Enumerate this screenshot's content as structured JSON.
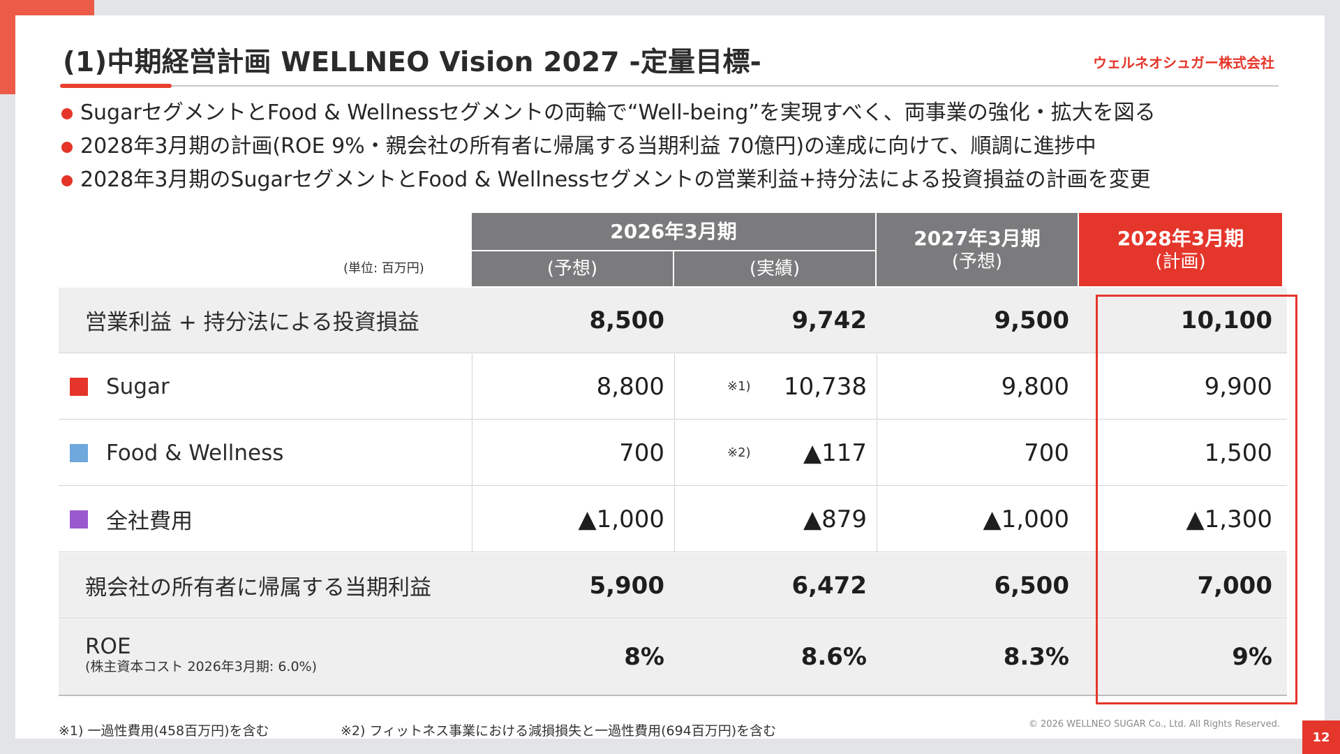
{
  "header": {
    "title": "(1)中期経営計画 WELLNEO Vision 2027 -定量目標-",
    "logo_text": "ウェルネオシュガー株式会社"
  },
  "bullets": [
    "SugarセグメントとFood & Wellnessセグメントの両輪で“Well-being”を実現すべく、両事業の強化・拡大を図る",
    "2028年3月期の計画(ROE 9%・親会社の所有者に帰属する当期利益 70億円)の達成に向けて、順調に進捗中",
    "2028年3月期のSugarセグメントとFood & Wellnessセグメントの営業利益+持分法による投資損益の計画を変更"
  ],
  "table": {
    "unit": "(単位: 百万円)",
    "headers": {
      "fy2026": "2026年3月期",
      "fy2026_forecast": "(予想)",
      "fy2026_actual": "(実績)",
      "fy2027": "2027年3月期",
      "fy2027_sub": "(予想)",
      "fy2028": "2028年3月期",
      "fy2028_sub": "(計画)"
    },
    "rows": [
      {
        "label": "営業利益 + 持分法による投資損益",
        "forecast": "8,500",
        "actual": "9,742",
        "fy2027": "9,500",
        "fy2028": "10,100",
        "note": ""
      },
      {
        "label": "Sugar",
        "forecast": "8,800",
        "actual": "10,738",
        "fy2027": "9,800",
        "fy2028": "9,900",
        "note": "※1)",
        "color": "#e5352a"
      },
      {
        "label": "Food & Wellness",
        "forecast": "700",
        "actual": "▲117",
        "fy2027": "700",
        "fy2028": "1,500",
        "note": "※2)",
        "color": "#6fa8dc"
      },
      {
        "label": "全社費用",
        "forecast": "▲1,000",
        "actual": "▲879",
        "fy2027": "▲1,000",
        "fy2028": "▲1,300",
        "note": "",
        "color": "#9b59d0"
      },
      {
        "label": "親会社の所有者に帰属する当期利益",
        "forecast": "5,900",
        "actual": "6,472",
        "fy2027": "6,500",
        "fy2028": "7,000",
        "note": ""
      },
      {
        "label": "ROE",
        "sublabel": "(株主資本コスト 2026年3月期: 6.0%)",
        "forecast": "8%",
        "actual": "8.6%",
        "fy2027": "8.3%",
        "fy2028": "9%",
        "note": ""
      }
    ]
  },
  "footnotes": {
    "note1": "※1) 一過性費用(458百万円)を含む",
    "note2": "※2) フィットネス事業における減損損失と一過性費用(694百万円)を含む"
  },
  "footer": {
    "copyright": "© 2026 WELLNEO SUGAR Co., Ltd. All Rights Reserved.",
    "page_number": "12"
  }
}
